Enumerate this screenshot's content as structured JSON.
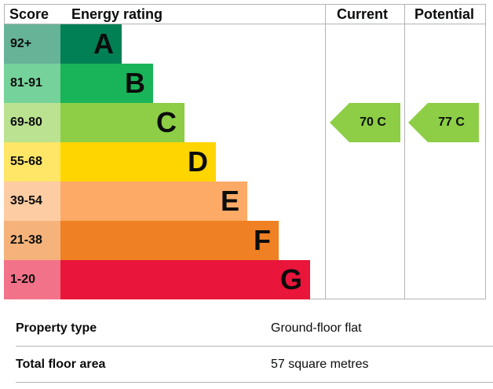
{
  "headers": {
    "score": "Score",
    "energy_rating": "Energy rating",
    "current": "Current",
    "potential": "Potential"
  },
  "bands": [
    {
      "score": "92+",
      "letter": "A",
      "color": "#008054",
      "score_bg": "#66b398"
    },
    {
      "score": "81-91",
      "letter": "B",
      "color": "#19b459",
      "score_bg": "#75d29b"
    },
    {
      "score": "69-80",
      "letter": "C",
      "color": "#8dce46",
      "score_bg": "#bbe290"
    },
    {
      "score": "55-68",
      "letter": "D",
      "color": "#ffd500",
      "score_bg": "#ffe666"
    },
    {
      "score": "39-54",
      "letter": "E",
      "color": "#fcaa65",
      "score_bg": "#fdcca3"
    },
    {
      "score": "21-38",
      "letter": "F",
      "color": "#ef8023",
      "score_bg": "#f5b37b"
    },
    {
      "score": "1-20",
      "letter": "G",
      "color": "#e9153b",
      "score_bg": "#f27389"
    }
  ],
  "current": {
    "label": "70  C",
    "band": "C",
    "color": "#8dce46"
  },
  "potential": {
    "label": "77  C",
    "band": "C",
    "color": "#8dce46"
  },
  "details": [
    {
      "label": "Property type",
      "value": "Ground-floor flat"
    },
    {
      "label": "Total floor area",
      "value": "57 square metres"
    }
  ]
}
